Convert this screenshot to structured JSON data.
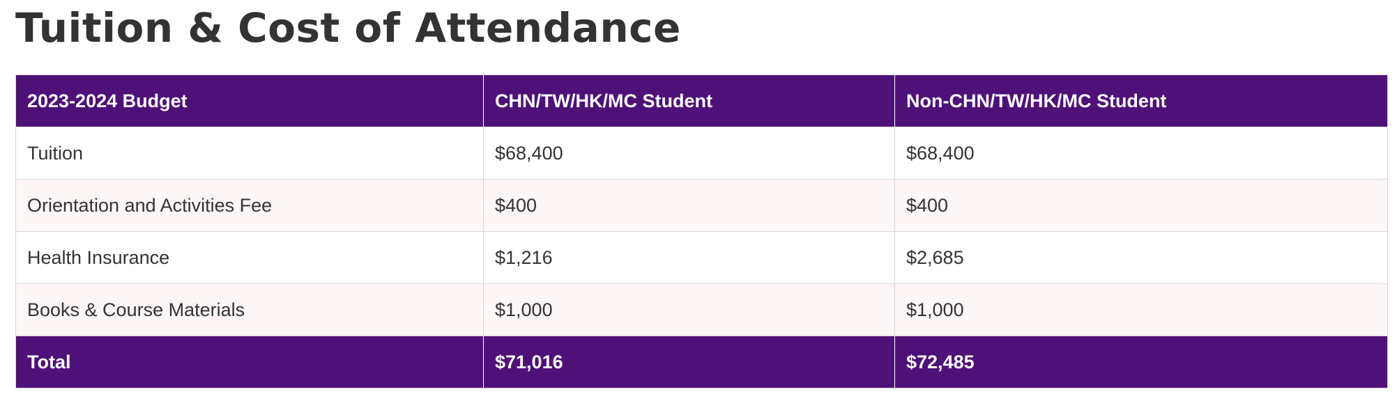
{
  "page": {
    "title": "Tuition & Cost of Attendance"
  },
  "table": {
    "headers": [
      "2023-2024 Budget",
      "CHN/TW/HK/MC Student",
      "Non-CHN/TW/HK/MC Student"
    ],
    "rows": [
      {
        "item": "Tuition",
        "chn": "$68,400",
        "non_chn": "$68,400"
      },
      {
        "item": "Orientation and Activities Fee",
        "chn": "$400",
        "non_chn": "$400"
      },
      {
        "item": "Health Insurance",
        "chn": "$1,216",
        "non_chn": "$2,685"
      },
      {
        "item": "Books & Course Materials",
        "chn": "$1,000",
        "non_chn": "$1,000"
      }
    ],
    "total": {
      "label": "Total",
      "chn": "$71,016",
      "non_chn": "$72,485"
    }
  },
  "colors": {
    "header_bg": "#4e1178",
    "alt_row_bg": "#fcf6f6",
    "text": "#333333"
  }
}
